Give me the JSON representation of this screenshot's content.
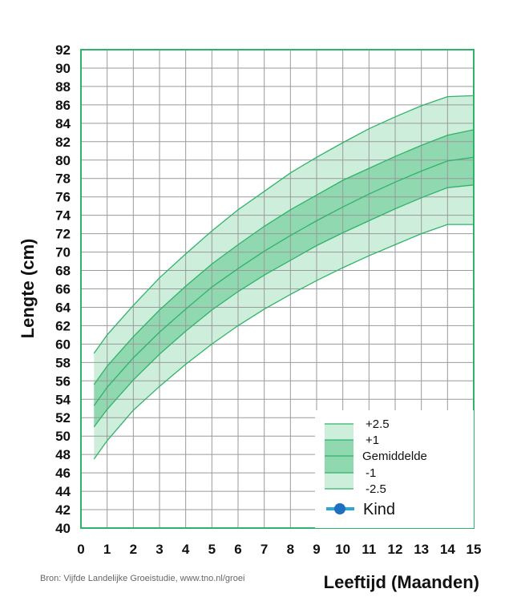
{
  "chart_data": {
    "type": "line",
    "ylabel": "Lengte (cm)",
    "xlabel": "Leeftijd (Maanden)",
    "source": "Bron: Vijfde Landelijke Groeistudie, www.tno.nl/groei",
    "xlim": [
      0,
      15
    ],
    "ylim": [
      40,
      92
    ],
    "x_ticks": [
      0,
      1,
      2,
      3,
      4,
      5,
      6,
      7,
      8,
      9,
      10,
      11,
      12,
      13,
      14,
      15
    ],
    "y_ticks": [
      40,
      42,
      44,
      46,
      48,
      50,
      52,
      54,
      56,
      58,
      60,
      62,
      64,
      66,
      68,
      70,
      72,
      74,
      76,
      78,
      80,
      82,
      84,
      86,
      88,
      90,
      92
    ],
    "grid": true,
    "legend_position": "bottom-right",
    "x": [
      0.5,
      1,
      2,
      3,
      4,
      5,
      6,
      7,
      8,
      9,
      10,
      11,
      12,
      13,
      14,
      15
    ],
    "series": [
      {
        "name": "+2.5",
        "values": [
          59.0,
          61.0,
          64.2,
          67.2,
          69.8,
          72.3,
          74.6,
          76.6,
          78.6,
          80.3,
          81.9,
          83.4,
          84.7,
          85.9,
          86.9,
          87.0
        ]
      },
      {
        "name": "+1",
        "values": [
          55.6,
          57.6,
          60.8,
          63.7,
          66.3,
          68.7,
          70.8,
          72.8,
          74.6,
          76.2,
          77.8,
          79.1,
          80.4,
          81.6,
          82.7,
          83.3
        ]
      },
      {
        "name": "Gemiddelde",
        "values": [
          53.3,
          55.3,
          58.5,
          61.3,
          63.8,
          66.2,
          68.2,
          70.1,
          71.8,
          73.4,
          74.9,
          76.3,
          77.6,
          78.8,
          79.9,
          80.3
        ]
      },
      {
        "name": "-1",
        "values": [
          51.0,
          52.9,
          56.1,
          58.9,
          61.4,
          63.7,
          65.7,
          67.5,
          69.1,
          70.7,
          72.1,
          73.4,
          74.7,
          75.9,
          77.0,
          77.3
        ]
      },
      {
        "name": "-2.5",
        "values": [
          47.5,
          49.5,
          52.8,
          55.4,
          57.8,
          60.0,
          62.0,
          63.8,
          65.4,
          66.9,
          68.3,
          69.6,
          70.8,
          72.0,
          73.0,
          73.0
        ]
      }
    ],
    "legend": {
      "entries": [
        "+2.5",
        "+1",
        "Gemiddelde",
        "-1",
        "-2.5"
      ],
      "kind_label": "Kind"
    },
    "colors": {
      "line": "#2fb36a",
      "band_outer": "#cdeedb",
      "band_mid": "#a9e2c3",
      "band_inner": "#8fd8b0",
      "grid": "#9a9a9a",
      "frame": "#2fb36a",
      "kind_line": "#2aa7d8",
      "kind_marker": "#1f6fbf"
    }
  }
}
